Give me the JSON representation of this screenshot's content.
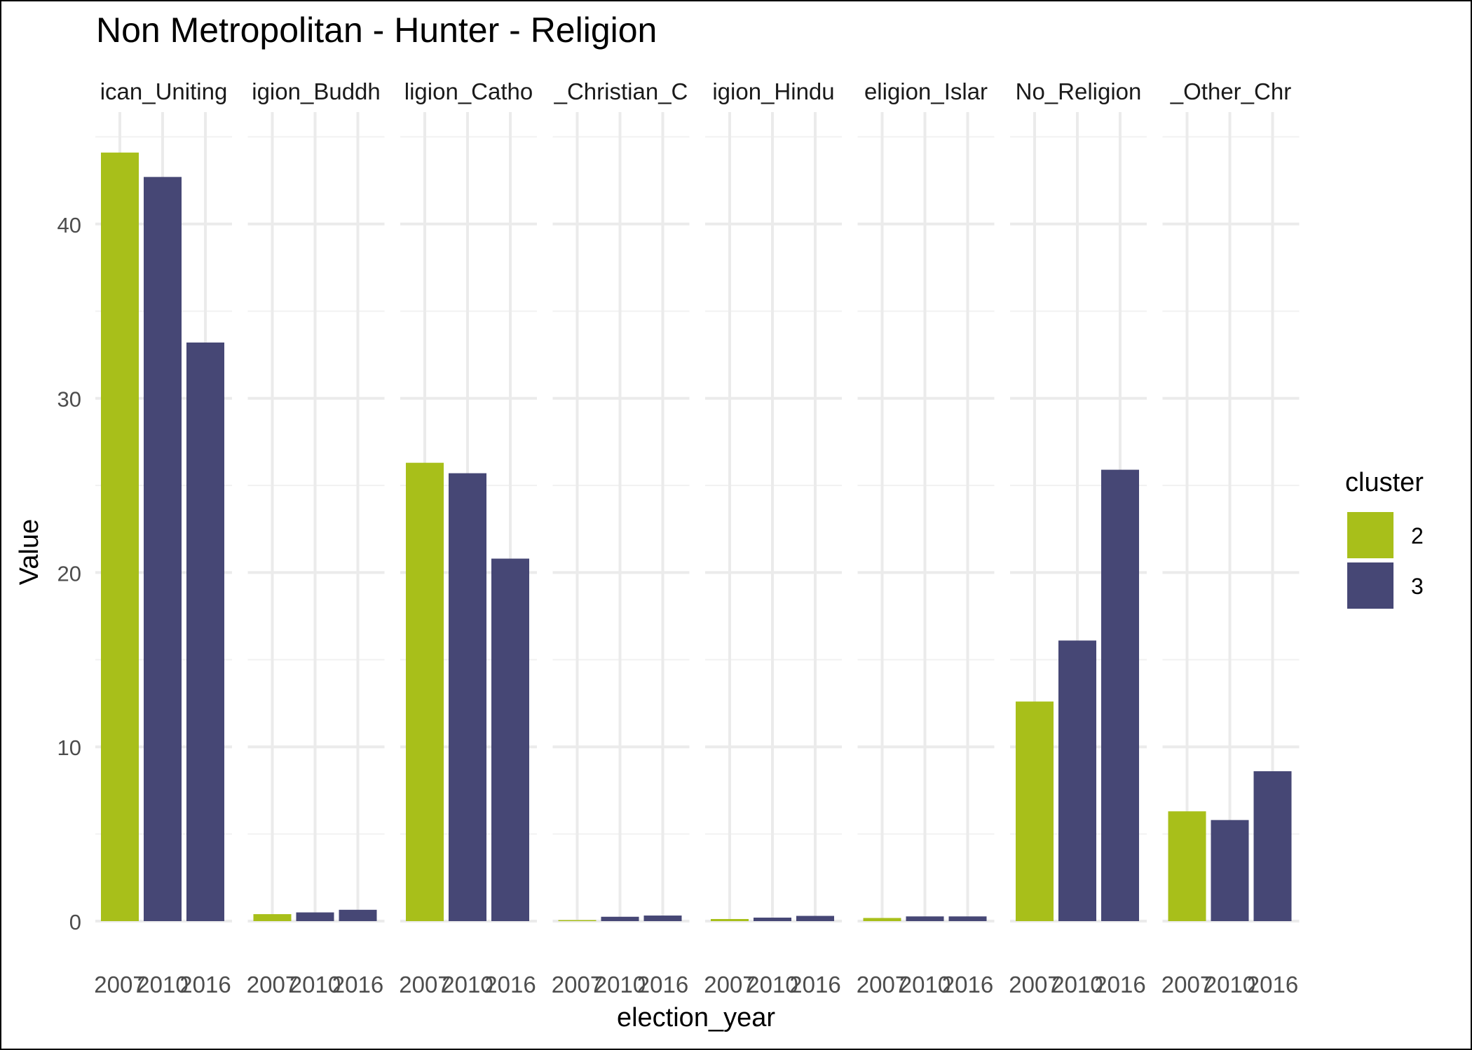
{
  "chart_data": {
    "type": "bar",
    "title": "Non Metropolitan - Hunter - Religion",
    "xlabel": "election_year",
    "ylabel": "Value",
    "ylim": [
      0,
      45
    ],
    "y_ticks": [
      0,
      10,
      20,
      30,
      40
    ],
    "categories": [
      "2007",
      "2010",
      "2016"
    ],
    "x_tick_labels": [
      "2007",
      "2010",
      "2016"
    ],
    "bar_clusters": [
      "2",
      "3",
      "3"
    ],
    "facets": [
      {
        "strip_label": "ican_Uniting",
        "values": [
          44.1,
          42.7,
          33.2
        ]
      },
      {
        "strip_label": "igion_Buddh",
        "values": [
          0.4,
          0.5,
          0.65
        ]
      },
      {
        "strip_label": "ligion_Catho",
        "values": [
          26.3,
          25.7,
          20.8
        ]
      },
      {
        "strip_label": "_Christian_C",
        "values": [
          0.05,
          0.25,
          0.32
        ]
      },
      {
        "strip_label": "igion_Hindu",
        "values": [
          0.12,
          0.2,
          0.3
        ]
      },
      {
        "strip_label": "eligion_Islar",
        "values": [
          0.18,
          0.27,
          0.27
        ]
      },
      {
        "strip_label": "No_Religion",
        "values": [
          12.6,
          16.1,
          25.9
        ]
      },
      {
        "strip_label": "_Other_Chr",
        "values": [
          6.3,
          5.8,
          8.6
        ]
      }
    ],
    "legend": {
      "title": "cluster",
      "position": "right",
      "entries": [
        {
          "label": "2",
          "color": "#a8bf1a"
        },
        {
          "label": "3",
          "color": "#464775"
        }
      ]
    },
    "grid": true,
    "colors": {
      "cluster_2": "#a8bf1a",
      "cluster_3": "#464775",
      "grid": "#ebebeb"
    }
  }
}
